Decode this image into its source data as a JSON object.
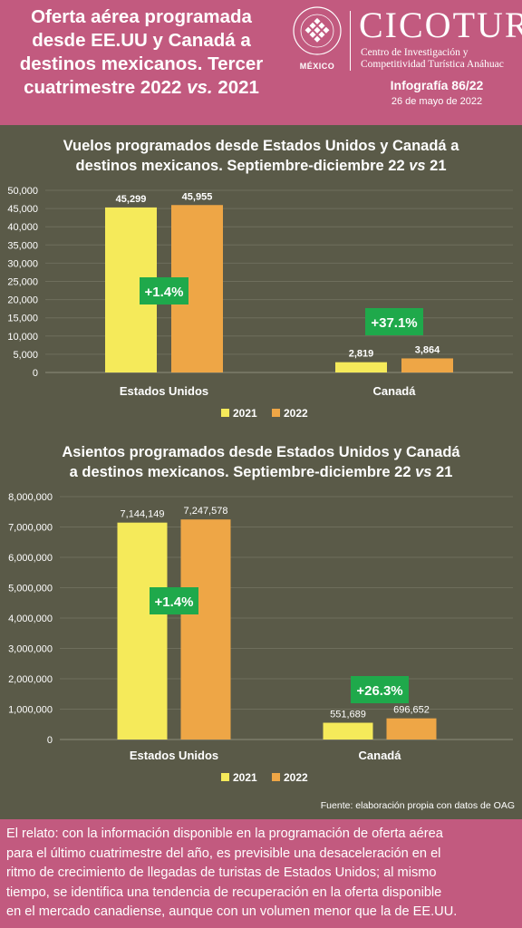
{
  "header": {
    "title_line1": "Oferta aérea programada",
    "title_line2": "desde EE.UU y Canadá a",
    "title_line3": "destinos mexicanos. Tercer",
    "title_line4a": "cuatrimestre 2022 ",
    "title_line4b": "vs.",
    "title_line4c": " 2021",
    "logo_text": "MÉXICO",
    "brand": "CICOTUR",
    "brand_sub1": "Centro de Investigación y",
    "brand_sub2": "Competitividad Turística Anáhuac",
    "infografia": "Infografía 86/22",
    "date": "26 de mayo de 2022"
  },
  "colors": {
    "background": "#5a5a48",
    "header": "#c25a7f",
    "series_2021": "#f5ea5a",
    "series_2022": "#eea646",
    "badge": "#1fa94b"
  },
  "chart_data": [
    {
      "type": "bar",
      "title_part1": "Vuelos programados desde Estados Unidos y Canadá a",
      "title_part2": "destinos mexicanos. Septiembre-diciembre 22 ",
      "title_vs": "vs",
      "title_part3": " 21",
      "categories": [
        "Estados Unidos",
        "Canadá"
      ],
      "series": [
        {
          "name": "2021",
          "values": [
            45299,
            2819
          ],
          "labels": [
            "45,299",
            "2,819"
          ]
        },
        {
          "name": "2022",
          "values": [
            45955,
            3864
          ],
          "labels": [
            "45,955",
            "3,864"
          ]
        }
      ],
      "annotations": [
        "+1.4%",
        "+37.1%"
      ],
      "ylim": [
        0,
        50000
      ],
      "yticks": [
        0,
        5000,
        10000,
        15000,
        20000,
        25000,
        30000,
        35000,
        40000,
        45000,
        50000
      ],
      "ytick_labels": [
        "0",
        "5,000",
        "10,000",
        "15,000",
        "20,000",
        "25,000",
        "30,000",
        "35,000",
        "40,000",
        "45,000",
        "50,000"
      ],
      "grid": true,
      "legend": "bottom-right"
    },
    {
      "type": "bar",
      "title_part1": "Asientos programados desde Estados Unidos y Canadá",
      "title_part2": "a destinos mexicanos. Septiembre-diciembre 22 ",
      "title_vs": "vs",
      "title_part3": " 21",
      "categories": [
        "Estados Unidos",
        "Canadá"
      ],
      "series": [
        {
          "name": "2021",
          "values": [
            7144149,
            551689
          ],
          "labels": [
            "7,144,149",
            "551,689"
          ]
        },
        {
          "name": "2022",
          "values": [
            7247578,
            696652
          ],
          "labels": [
            "7,247,578",
            "696,652"
          ]
        }
      ],
      "annotations": [
        "+1.4%",
        "+26.3%"
      ],
      "ylim": [
        0,
        8000000
      ],
      "yticks": [
        0,
        1000000,
        2000000,
        3000000,
        4000000,
        5000000,
        6000000,
        7000000,
        8000000
      ],
      "ytick_labels": [
        "0",
        "1,000,000",
        "2,000,000",
        "3,000,000",
        "4,000,000",
        "5,000,000",
        "6,000,000",
        "7,000,000",
        "8,000,000"
      ],
      "grid": true,
      "legend": "bottom-right"
    }
  ],
  "source": "Fuente: elaboración propia con datos de OAG",
  "footer": {
    "line1": "El relato: con la información disponible en la programación de oferta aérea",
    "line2": "para el último cuatrimestre del año, es previsible una desaceleración en el",
    "line3": "ritmo de crecimiento de llegadas de turistas de Estados Unidos; al mismo",
    "line4": "tiempo, se identifica una tendencia de recuperación en la oferta disponible",
    "line5": "en el mercado canadiense, aunque con un volumen menor que la de EE.UU."
  }
}
